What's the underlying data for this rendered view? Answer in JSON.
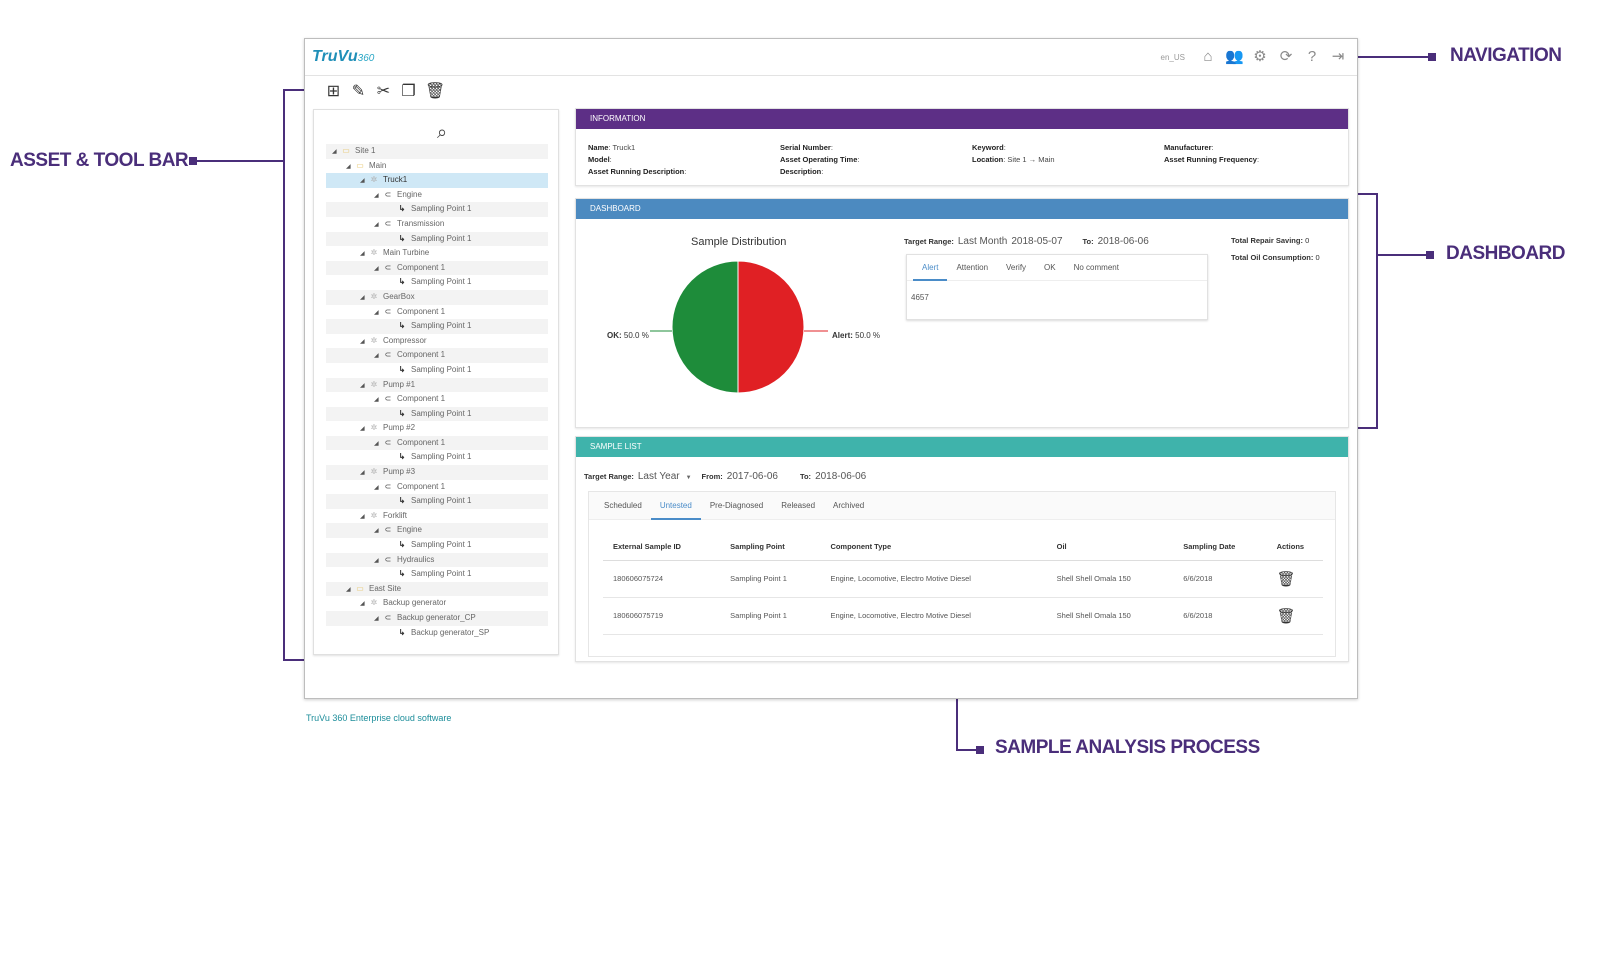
{
  "callouts": {
    "asset": "ASSET & TOOL BAR",
    "navigation": "NAVIGATION",
    "dashboard": "DASHBOARD",
    "sample": "SAMPLE ANALYSIS PROCESS"
  },
  "app": {
    "logo_main": "TruVu",
    "logo_small": "360",
    "locale": "en_US",
    "footer": "TruVu 360 Enterprise cloud software"
  },
  "nav_icons": [
    "home-icon",
    "users-icon",
    "gear-icon",
    "refresh-icon",
    "help-icon",
    "logout-icon"
  ],
  "toolbar_icons": [
    "add-icon",
    "edit-icon",
    "cut-icon",
    "copy-icon",
    "delete-icon"
  ],
  "tree": [
    {
      "label": "Site 1",
      "level": 0,
      "icon": "folder"
    },
    {
      "label": "Main",
      "level": 1,
      "icon": "folder"
    },
    {
      "label": "Truck1",
      "level": 2,
      "icon": "gear",
      "selected": true
    },
    {
      "label": "Engine",
      "level": 3,
      "icon": "comp"
    },
    {
      "label": "Sampling Point 1",
      "level": 4,
      "icon": "sp"
    },
    {
      "label": "Transmission",
      "level": 3,
      "icon": "comp"
    },
    {
      "label": "Sampling Point 1",
      "level": 4,
      "icon": "sp"
    },
    {
      "label": "Main Turbine",
      "level": 2,
      "icon": "gear"
    },
    {
      "label": "Component 1",
      "level": 3,
      "icon": "comp"
    },
    {
      "label": "Sampling Point 1",
      "level": 4,
      "icon": "sp"
    },
    {
      "label": "GearBox",
      "level": 2,
      "icon": "gear"
    },
    {
      "label": "Component 1",
      "level": 3,
      "icon": "comp"
    },
    {
      "label": "Sampling Point 1",
      "level": 4,
      "icon": "sp"
    },
    {
      "label": "Compressor",
      "level": 2,
      "icon": "gear"
    },
    {
      "label": "Component 1",
      "level": 3,
      "icon": "comp"
    },
    {
      "label": "Sampling Point 1",
      "level": 4,
      "icon": "sp"
    },
    {
      "label": "Pump #1",
      "level": 2,
      "icon": "gear"
    },
    {
      "label": "Component 1",
      "level": 3,
      "icon": "comp"
    },
    {
      "label": "Sampling Point 1",
      "level": 4,
      "icon": "sp"
    },
    {
      "label": "Pump #2",
      "level": 2,
      "icon": "gear"
    },
    {
      "label": "Component 1",
      "level": 3,
      "icon": "comp"
    },
    {
      "label": "Sampling Point 1",
      "level": 4,
      "icon": "sp"
    },
    {
      "label": "Pump #3",
      "level": 2,
      "icon": "gear"
    },
    {
      "label": "Component 1",
      "level": 3,
      "icon": "comp"
    },
    {
      "label": "Sampling Point 1",
      "level": 4,
      "icon": "sp"
    },
    {
      "label": "Forklift",
      "level": 2,
      "icon": "gear"
    },
    {
      "label": "Engine",
      "level": 3,
      "icon": "comp"
    },
    {
      "label": "Sampling Point 1",
      "level": 4,
      "icon": "sp"
    },
    {
      "label": "Hydraulics",
      "level": 3,
      "icon": "comp"
    },
    {
      "label": "Sampling Point 1",
      "level": 4,
      "icon": "sp"
    },
    {
      "label": "East Site",
      "level": 1,
      "icon": "folder"
    },
    {
      "label": "Backup generator",
      "level": 2,
      "icon": "gear"
    },
    {
      "label": "Backup generator_CP",
      "level": 3,
      "icon": "comp"
    },
    {
      "label": "Backup generator_SP",
      "level": 4,
      "icon": "sp"
    }
  ],
  "information": {
    "title": "INFORMATION",
    "fields": [
      {
        "label": "Name",
        "value": "Truck1"
      },
      {
        "label": "Serial Number",
        "value": ""
      },
      {
        "label": "Keyword",
        "value": ""
      },
      {
        "label": "Manufacturer",
        "value": ""
      },
      {
        "label": "Model",
        "value": ""
      },
      {
        "label": "Asset Operating Time",
        "value": ""
      },
      {
        "label": "Location",
        "value": "Site 1 → Main"
      },
      {
        "label": "Asset Running Frequency",
        "value": ""
      },
      {
        "label": "Asset Running Description",
        "value": ""
      },
      {
        "label": "Description",
        "value": ""
      }
    ]
  },
  "dashboard": {
    "title": "DASHBOARD",
    "target_range_label": "Target Range:",
    "target_range_value": "Last Month",
    "from_value": "2018-05-07",
    "to_label": "To:",
    "to_value": "2018-06-06",
    "total_repair_label": "Total Repair Saving:",
    "total_repair_value": "0",
    "total_oil_label": "Total Oil Consumption:",
    "total_oil_value": "0",
    "tabs": [
      "Alert",
      "Attention",
      "Verify",
      "OK",
      "No comment"
    ],
    "active_tab": 0,
    "alert_count": "4657"
  },
  "chart_data": {
    "type": "pie",
    "title": "Sample Distribution",
    "slices": [
      {
        "label": "OK",
        "value": 50.0,
        "color": "#1e8c3a",
        "text": "OK: 50.0 %"
      },
      {
        "label": "Alert",
        "value": 50.0,
        "color": "#e02024",
        "text": "Alert: 50.0 %"
      }
    ]
  },
  "sample_list": {
    "title": "SAMPLE LIST",
    "target_range_label": "Target Range:",
    "target_range_value": "Last Year",
    "from_label": "From:",
    "from_value": "2017-06-06",
    "to_label": "To:",
    "to_value": "2018-06-06",
    "tabs": [
      "Scheduled",
      "Untested",
      "Pre-Diagnosed",
      "Released",
      "Archived"
    ],
    "active_tab": 1,
    "columns": [
      "External Sample ID",
      "Sampling Point",
      "Component Type",
      "Oil",
      "Sampling Date",
      "Actions"
    ],
    "rows": [
      [
        "180606075724",
        "Sampling Point 1",
        "Engine, Locomotive, Electro Motive Diesel",
        "Shell Shell Omala 150",
        "6/6/2018"
      ],
      [
        "180606075719",
        "Sampling Point 1",
        "Engine, Locomotive, Electro Motive Diesel",
        "Shell Shell Omala 150",
        "6/6/2018"
      ]
    ]
  }
}
